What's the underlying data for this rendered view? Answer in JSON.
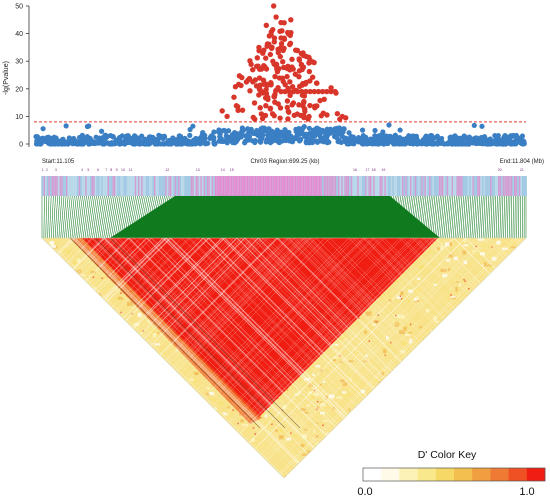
{
  "chart_data": {
    "type": "scatter",
    "title": "",
    "ylabel": "-lg(Pvalue)",
    "xlabel": "",
    "ylim": [
      0,
      50
    ],
    "yticks": [
      0,
      10,
      20,
      30,
      40,
      50
    ],
    "threshold": 8,
    "threshold_color": "#e63b2e",
    "colors": {
      "significant": "#d9362b",
      "background": "#3a7fc4"
    },
    "region": {
      "start_label": "Start:11.105",
      "center_label": "Chr03 Region:699.25 (kb)",
      "end_label": "End:11.804 (Mb)",
      "start_mb": 11.105,
      "end_mb": 11.804
    },
    "gene_labels": [
      "1",
      "2",
      "3",
      "4",
      "5",
      "6",
      "7",
      "8",
      "9",
      "10",
      "11",
      "12",
      "13",
      "14",
      "15",
      "16",
      "17",
      "18",
      "19",
      "20",
      "21"
    ],
    "gene_positions_mb": [
      11.106,
      11.112,
      11.125,
      11.163,
      11.172,
      11.186,
      11.198,
      11.205,
      11.213,
      11.222,
      11.233,
      11.286,
      11.33,
      11.366,
      11.379,
      11.557,
      11.575,
      11.584,
      11.598,
      11.766,
      11.798
    ],
    "ld_heatmap": {
      "colors": [
        "#ffffff",
        "#fdf7c4",
        "#f8e26a",
        "#f2b64a",
        "#ee7233",
        "#f01e12"
      ]
    },
    "color_key": {
      "title": "D' Color Key",
      "min_label": "0.0",
      "max_label": "1.0"
    }
  }
}
